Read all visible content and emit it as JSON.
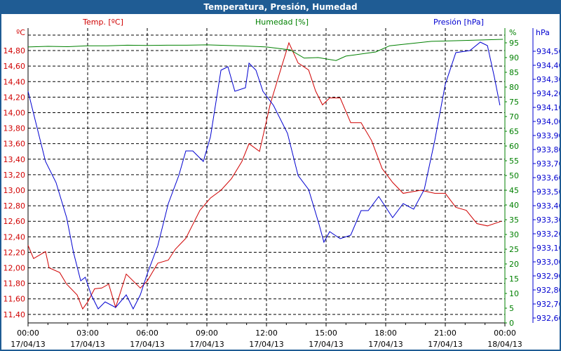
{
  "window": {
    "title": "Temperatura, Presión, Humedad"
  },
  "chart_data": {
    "type": "line",
    "title": "Temperatura, Presión, Humedad",
    "x_unit": "hours since 17/04/13 00:00",
    "x_ticks": [
      {
        "h": 0,
        "time": "00:00",
        "date": "17/04/13"
      },
      {
        "h": 3,
        "time": "03:00",
        "date": "17/04/13"
      },
      {
        "h": 6,
        "time": "06:00",
        "date": "17/04/13"
      },
      {
        "h": 9,
        "time": "09:00",
        "date": "17/04/13"
      },
      {
        "h": 12,
        "time": "12:00",
        "date": "17/04/13"
      },
      {
        "h": 15,
        "time": "15:00",
        "date": "17/04/13"
      },
      {
        "h": 18,
        "time": "18:00",
        "date": "17/04/13"
      },
      {
        "h": 21,
        "time": "21:00",
        "date": "17/04/13"
      },
      {
        "h": 24,
        "time": "00:00",
        "date": "18/04/13"
      }
    ],
    "xlim": [
      0,
      24
    ],
    "grid": true,
    "axes": {
      "temp": {
        "label": "Temp. [ºC]",
        "unit": "ºC",
        "color": "#d00000",
        "ylim": [
          11.29,
          15.09
        ],
        "ticks": [
          "14,80",
          "14,60",
          "14,40",
          "14,20",
          "14,00",
          "13,80",
          "13,60",
          "13,40",
          "13,20",
          "13,00",
          "12,80",
          "12,60",
          "12,40",
          "12,20",
          "12,00",
          "11,80",
          "11,60",
          "11,40"
        ]
      },
      "hum": {
        "label": "Humedad [%]",
        "unit": "%",
        "color": "#008000",
        "ylim": [
          0,
          100
        ],
        "ticks": [
          "95",
          "90",
          "85",
          "80",
          "75",
          "70",
          "65",
          "60",
          "55",
          "50",
          "45",
          "40",
          "35",
          "30",
          "25",
          "20",
          "15",
          "10",
          "5",
          "0"
        ]
      },
      "pres": {
        "label": "Presión [hPa]",
        "unit": "hPa",
        "color": "#0000d0",
        "ylim": [
          932.565,
          934.665
        ],
        "ticks": [
          "934,50",
          "934,40",
          "934,30",
          "934,20",
          "934,10",
          "934,00",
          "933,90",
          "933,80",
          "933,70",
          "933,60",
          "933,50",
          "933,40",
          "933,30",
          "933,20",
          "933,10",
          "933,00",
          "932,90",
          "932,80",
          "932,70",
          "932,60"
        ]
      }
    },
    "series": [
      {
        "name": "Temp. [ºC]",
        "axis": "temp",
        "color": "#d00000",
        "x": [
          0,
          0.28,
          0.88,
          1.06,
          1.59,
          1.94,
          2.47,
          2.75,
          3,
          3.35,
          3.71,
          4.06,
          4.41,
          4.94,
          5.65,
          6,
          6.53,
          7.06,
          7.41,
          7.94,
          8.65,
          9.18,
          9.71,
          10.24,
          10.76,
          11.12,
          11.65,
          12.18,
          12.71,
          13.13,
          13.59,
          14.12,
          14.47,
          14.82,
          15.18,
          15.71,
          16.24,
          16.76,
          17.29,
          17.82,
          18.35,
          18.88,
          19.76,
          20.47,
          21,
          21.53,
          22.06,
          22.59,
          23.12,
          23.82
        ],
        "y": [
          12.29,
          12.12,
          12.21,
          12.0,
          11.94,
          11.79,
          11.65,
          11.47,
          11.56,
          11.73,
          11.74,
          11.79,
          11.49,
          11.92,
          11.74,
          11.83,
          12.06,
          12.1,
          12.24,
          12.38,
          12.74,
          12.9,
          13.0,
          13.15,
          13.37,
          13.6,
          13.5,
          14.1,
          14.55,
          14.9,
          14.64,
          14.55,
          14.28,
          14.1,
          14.19,
          14.19,
          13.87,
          13.87,
          13.64,
          13.28,
          13.1,
          12.96,
          13.0,
          12.96,
          12.96,
          12.78,
          12.74,
          12.57,
          12.54,
          12.6
        ]
      },
      {
        "name": "Humedad [%]",
        "axis": "hum",
        "color": "#008000",
        "x": [
          0,
          1,
          2,
          3,
          4,
          5,
          6,
          7,
          8,
          9,
          10,
          11,
          12,
          13.2,
          13.9,
          14.6,
          15.5,
          16,
          17.5,
          18.2,
          20.3,
          22,
          23.9
        ],
        "y": [
          93.6,
          93.8,
          93.7,
          94,
          94,
          94.2,
          94.1,
          94.2,
          94.2,
          94.3,
          94.1,
          93.9,
          93.6,
          92.6,
          89.8,
          90,
          89,
          90.5,
          91.9,
          94,
          95.5,
          95.8,
          96.2
        ]
      },
      {
        "name": "Presión [hPa]",
        "axis": "pres",
        "color": "#0000d0",
        "x": [
          0,
          0.35,
          0.88,
          1.41,
          1.94,
          2.29,
          2.65,
          2.88,
          3.18,
          3.53,
          3.88,
          4.41,
          4.94,
          5.29,
          5.65,
          6,
          6.53,
          7.06,
          7.59,
          7.94,
          8.29,
          8.82,
          9.18,
          9.71,
          10.06,
          10.41,
          10.94,
          11.12,
          11.47,
          11.82,
          12.35,
          13.06,
          13.59,
          14.12,
          14.65,
          14.89,
          15.18,
          15.71,
          16.24,
          16.76,
          17.12,
          17.65,
          18,
          18.35,
          18.88,
          19.41,
          19.94,
          20.47,
          21,
          21.53,
          22.24,
          22.76,
          23.12,
          23.47,
          23.75
        ],
        "y": [
          934.215,
          934.015,
          933.715,
          933.565,
          933.315,
          933.065,
          932.865,
          932.89,
          932.765,
          932.665,
          932.715,
          932.675,
          932.765,
          932.665,
          932.765,
          932.915,
          933.115,
          933.415,
          933.615,
          933.79,
          933.79,
          933.715,
          933.89,
          934.365,
          934.39,
          934.215,
          934.24,
          934.415,
          934.365,
          934.215,
          934.115,
          933.915,
          933.615,
          933.515,
          933.265,
          933.14,
          933.215,
          933.165,
          933.19,
          933.365,
          933.365,
          933.465,
          933.39,
          933.315,
          933.415,
          933.375,
          933.515,
          933.865,
          934.265,
          934.49,
          934.505,
          934.565,
          934.54,
          934.315,
          934.115
        ]
      }
    ]
  }
}
